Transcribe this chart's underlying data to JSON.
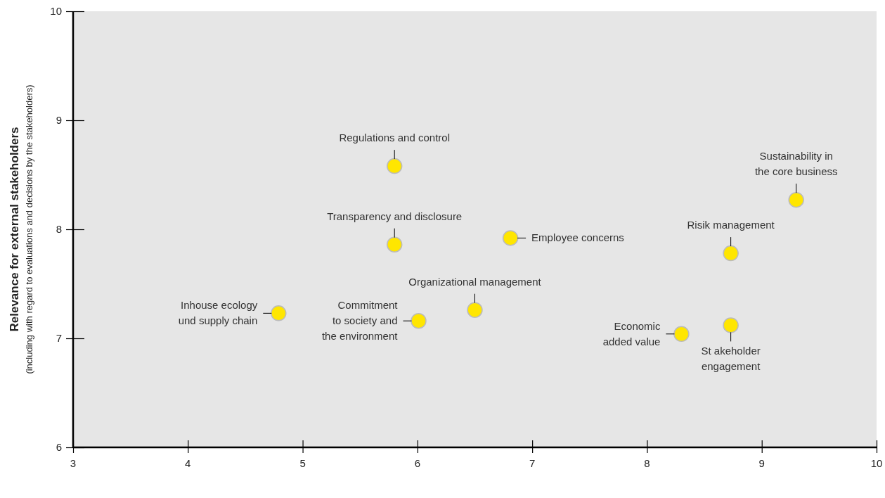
{
  "chart_data": {
    "type": "scatter",
    "ylabel": "Relevance for external stakeholders",
    "xlim": [
      3,
      10
    ],
    "ylim": [
      6,
      10
    ],
    "xticks": [
      3,
      4,
      5,
      6,
      7,
      8,
      9,
      10
    ],
    "yticks": [
      6,
      7,
      8,
      9,
      10
    ],
    "grid": false,
    "marker": "circle",
    "series": [
      {
        "color": "#ffe600",
        "x": [
          5.8,
          5.8,
          6.81,
          6.5,
          6.01,
          4.79,
          8.3,
          8.73,
          8.73,
          9.3
        ],
        "values": [
          8.58,
          7.86,
          7.92,
          7.26,
          7.16,
          7.23,
          7.04,
          7.12,
          7.78,
          8.27
        ]
      }
    ],
    "annotations": [
      {
        "text": "Regulations and control",
        "x": 5.8,
        "y": 8.58
      },
      {
        "text": "Transparency and disclosure",
        "x": 5.8,
        "y": 7.86
      },
      {
        "text": "Employee concerns",
        "x": 6.81,
        "y": 7.92
      },
      {
        "text": "Organizational management",
        "x": 6.5,
        "y": 7.26
      },
      {
        "text": "Commitment\nto society and\nthe environment",
        "x": 6.01,
        "y": 7.16
      },
      {
        "text": "Inhouse ecology\nund supply chain",
        "x": 4.79,
        "y": 7.23
      },
      {
        "text": "Economic\nadded value",
        "x": 8.3,
        "y": 7.04
      },
      {
        "text": "St akeholder\nengagement",
        "x": 8.73,
        "y": 7.12
      },
      {
        "text": "Risik management",
        "x": 8.73,
        "y": 7.78
      },
      {
        "text": "Sustainability in\nthe core business",
        "x": 9.3,
        "y": 8.27
      },
      "(including with regard to evaluations and decisions by the stakeholders)"
    ]
  }
}
